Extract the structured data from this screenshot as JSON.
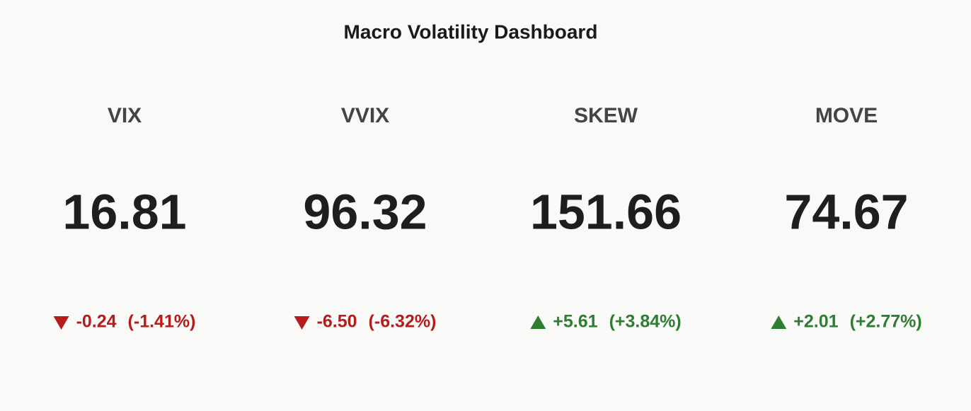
{
  "chart_data": {
    "type": "indicator",
    "title": "Macro Volatility Dashboard",
    "categories": [
      "VIX",
      "VVIX",
      "SKEW",
      "MOVE"
    ],
    "values": [
      16.81,
      96.32,
      151.66,
      74.67
    ],
    "deltas": [
      -0.24,
      -6.5,
      5.61,
      2.01
    ],
    "delta_labels": [
      "-0.24",
      "-6.50",
      "+5.61",
      "+2.01"
    ],
    "delta_percents": [
      -1.41,
      -6.32,
      3.84,
      2.77
    ],
    "delta_percent_labels": [
      "(-1.41%)",
      "(-6.32%)",
      "(+3.84%)",
      "(+2.77%)"
    ],
    "increasing_color": "#2e7d32",
    "decreasing_color": "#b71c1c"
  }
}
